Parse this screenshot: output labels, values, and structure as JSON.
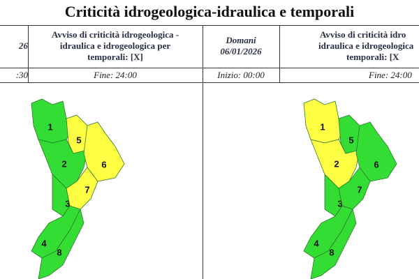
{
  "header": {
    "title": "Criticità idrogeologica-idraulica e temporali"
  },
  "table": {
    "header": [
      "26",
      [
        "Avviso di criticità idrogeologica -",
        "idraulica e idrogeologica per",
        "temporali: [X]"
      ],
      [
        "Domani",
        "06/01/2026"
      ],
      [
        "Avviso di criticità idro",
        "idraulica e idrogeologica",
        "temporali: [X"
      ]
    ],
    "times": [
      ":30",
      "Fine: 24:00",
      "Inizio: 00:00",
      "Fine: 24:00"
    ]
  },
  "maps": [
    {
      "zones": [
        {
          "label": "1",
          "color": "#33dd33"
        },
        {
          "label": "2",
          "color": "#33dd33"
        },
        {
          "label": "3",
          "color": "#33dd33"
        },
        {
          "label": "4",
          "color": "#33dd33"
        },
        {
          "label": "5",
          "color": "#ffff44"
        },
        {
          "label": "6",
          "color": "#ffff44"
        },
        {
          "label": "7",
          "color": "#ffff44"
        },
        {
          "label": "8",
          "color": "#33dd33"
        }
      ]
    },
    {
      "zones": [
        {
          "label": "1",
          "color": "#ffff44"
        },
        {
          "label": "2",
          "color": "#ffff44"
        },
        {
          "label": "3",
          "color": "#33dd33"
        },
        {
          "label": "4",
          "color": "#33dd33"
        },
        {
          "label": "5",
          "color": "#33dd33"
        },
        {
          "label": "6",
          "color": "#33dd33"
        },
        {
          "label": "7",
          "color": "#33dd33"
        },
        {
          "label": "8",
          "color": "#33dd33"
        }
      ]
    }
  ]
}
